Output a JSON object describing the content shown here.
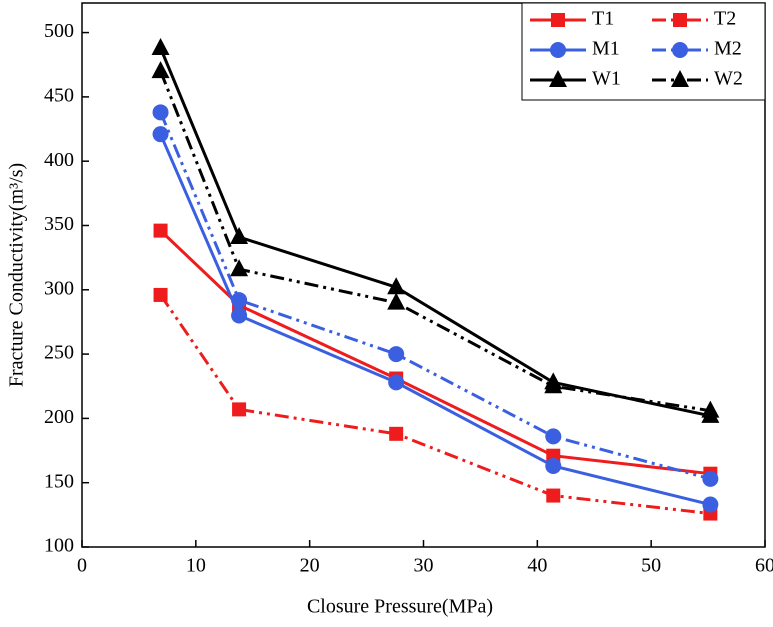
{
  "chart_data": {
    "type": "line",
    "xlabel": "Closure Pressure(MPa)",
    "ylabel": "Fracture Conductivity(m³/s)",
    "x": [
      6.9,
      13.8,
      27.6,
      41.4,
      55.2
    ],
    "series": [
      {
        "name": "T1",
        "color": "#ee1c1c",
        "marker": "square",
        "dash": "solid",
        "values": [
          346,
          288,
          231,
          171,
          157
        ]
      },
      {
        "name": "T2",
        "color": "#ee1c1c",
        "marker": "square",
        "dash": "dashdotdot",
        "values": [
          296,
          207,
          188,
          140,
          126
        ]
      },
      {
        "name": "M1",
        "color": "#3a5fe0",
        "marker": "circle",
        "dash": "solid",
        "values": [
          421,
          280,
          228,
          163,
          133
        ]
      },
      {
        "name": "M2",
        "color": "#3a5fe0",
        "marker": "circle",
        "dash": "dashdotdot",
        "values": [
          438,
          292,
          250,
          186,
          153
        ]
      },
      {
        "name": "W1",
        "color": "#000000",
        "marker": "triangle",
        "dash": "solid",
        "values": [
          488,
          341,
          302,
          228,
          202
        ]
      },
      {
        "name": "W2",
        "color": "#000000",
        "marker": "triangle",
        "dash": "dashdotdot",
        "values": [
          470,
          316,
          290,
          225,
          206
        ]
      }
    ],
    "xlim": [
      0,
      60
    ],
    "xticks": [
      0,
      10,
      20,
      30,
      40,
      50,
      60
    ],
    "ylim": [
      100,
      523
    ],
    "yticks": [
      100,
      150,
      200,
      250,
      300,
      350,
      400,
      450,
      500
    ],
    "legend": "upper right"
  }
}
